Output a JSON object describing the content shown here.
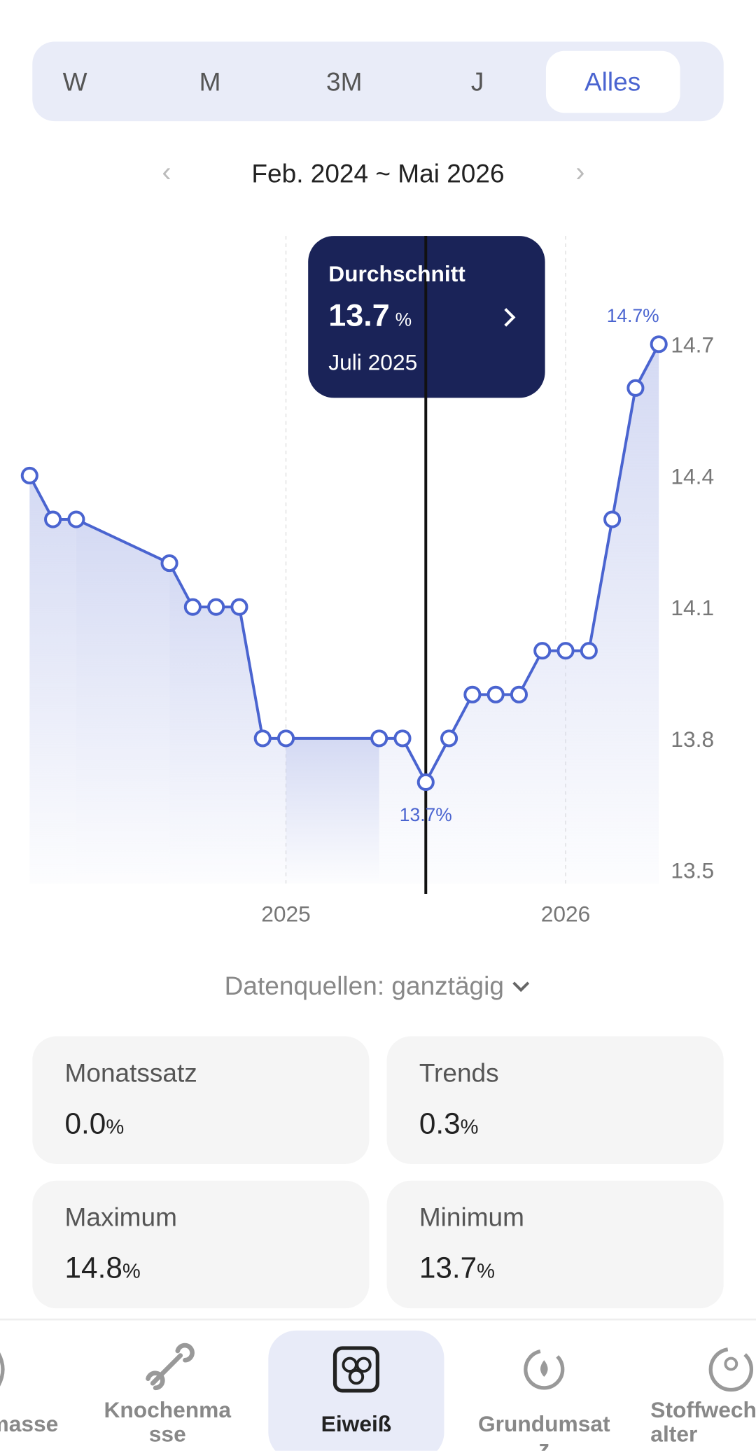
{
  "tabs": [
    "W",
    "M",
    "3M",
    "J",
    "Alles"
  ],
  "selected_tab": 4,
  "date_range": "Feb. 2024 ~ Mai 2026",
  "chart": {
    "type": "line",
    "categories": [
      null,
      null,
      null,
      null,
      null,
      null,
      null,
      null,
      null,
      null,
      null,
      "2025",
      null,
      null,
      null,
      null,
      null,
      null,
      null,
      null,
      null,
      null,
      null,
      "2026",
      null,
      null,
      null,
      null
    ],
    "series": [
      {
        "color": "#4a64d0",
        "values": [
          14.4,
          14.3,
          14.3,
          null,
          null,
          null,
          14.2,
          14.1,
          14.1,
          14.1,
          13.8,
          13.8,
          null,
          null,
          null,
          13.8,
          13.8,
          13.7,
          13.8,
          13.9,
          13.9,
          13.9,
          14.0,
          14.0,
          14.0,
          14.3,
          14.6,
          14.7
        ],
        "value_labels": [
          null,
          null,
          null,
          null,
          null,
          null,
          null,
          null,
          null,
          null,
          null,
          null,
          null,
          null,
          null,
          null,
          null,
          "13.7%",
          null,
          null,
          null,
          null,
          null,
          null,
          null,
          null,
          null,
          "14.7%"
        ]
      }
    ],
    "ylim": [
      13.5,
      14.7
    ],
    "yticks": [
      13.5,
      13.8,
      14.1,
      14.4,
      14.7
    ],
    "grid": true,
    "tooltip": {
      "title": "Durchschnitt",
      "value": 13.7,
      "unit": "%",
      "date": "Juli 2025"
    }
  },
  "data_sources": "Datenquellen: ganztägig",
  "stats": [
    {
      "label": "Monatssatz",
      "value": "0.0",
      "unit": "%"
    },
    {
      "label": "Trends",
      "value": "0.3",
      "unit": "%"
    },
    {
      "label": "Maximum",
      "value": "14.8",
      "unit": "%"
    },
    {
      "label": "Minimum",
      "value": "13.7",
      "unit": "%"
    }
  ],
  "nav": [
    "masse",
    "Knochenmasse",
    "Eiweiß",
    "Grundumsatz",
    "Stoffwechselalter"
  ],
  "selected_nav": 2
}
